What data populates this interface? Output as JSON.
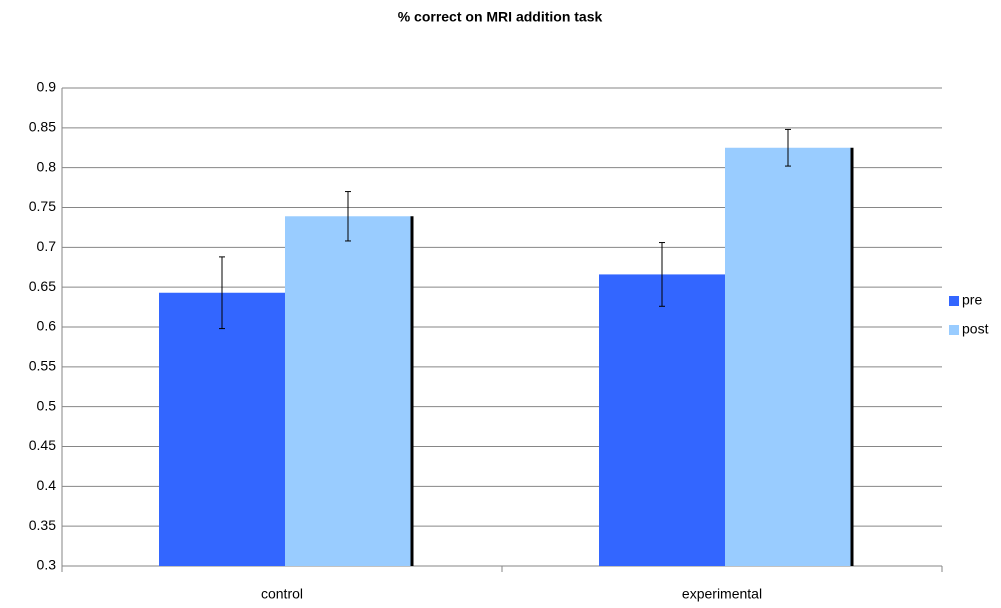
{
  "chart_data": {
    "type": "bar",
    "title": "% correct on MRI addition task",
    "categories": [
      "control",
      "experimental"
    ],
    "series": [
      {
        "name": "pre",
        "color": "#3366ff",
        "values": [
          0.643,
          0.666
        ],
        "errors": [
          0.045,
          0.04
        ]
      },
      {
        "name": "post",
        "color": "#99ccff",
        "values": [
          0.739,
          0.825
        ],
        "errors": [
          0.031,
          0.023
        ]
      }
    ],
    "ylim": [
      0.3,
      0.9
    ],
    "yticks": [
      0.3,
      0.35,
      0.4,
      0.45,
      0.5,
      0.55,
      0.6,
      0.65,
      0.7,
      0.75,
      0.8,
      0.85,
      0.9
    ],
    "grid": true,
    "legend": "right"
  }
}
